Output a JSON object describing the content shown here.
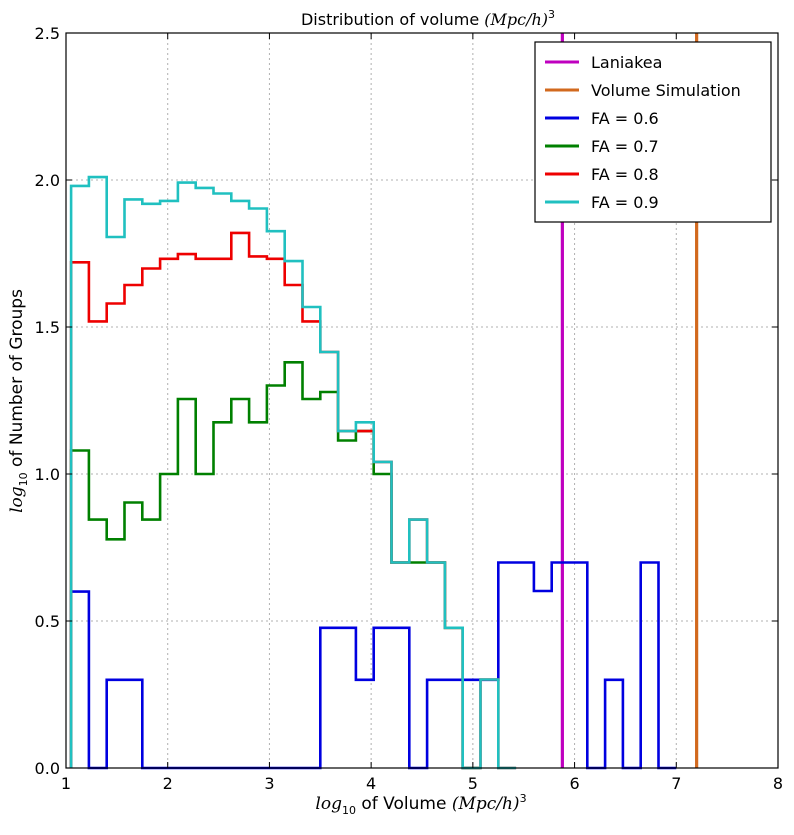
{
  "chart_data": {
    "type": "line",
    "title_prefix": "Distribution of volume ",
    "title_math": "(Mpc/h)",
    "title_sup": "3",
    "xlabel_sub_text": "log",
    "xlabel_sub": "10",
    "xlabel_middle": " of Volume ",
    "xlabel_math": "(Mpc/h)",
    "xlabel_sup": "3",
    "ylabel_sub_text": "log",
    "ylabel_sub": "10",
    "ylabel_rest": " of Number of Groups",
    "xlim": [
      1,
      8
    ],
    "ylim": [
      0,
      2.5
    ],
    "xticks": [
      "1",
      "2",
      "3",
      "4",
      "5",
      "6",
      "7",
      "8"
    ],
    "yticks": [
      "0.0",
      "0.5",
      "1.0",
      "1.5",
      "2.0",
      "2.5"
    ],
    "grid": true,
    "legend_position": "top-right",
    "bin_width": 0.175,
    "vlines": [
      {
        "name": "Laniakea",
        "x": 5.88,
        "color": "#bf00bf"
      },
      {
        "name": "Volume Simulation",
        "x": 7.2,
        "color": "#d2691e"
      }
    ],
    "series": [
      {
        "name": "FA = 0.6",
        "color": "#0000e0",
        "x_start": 1.05,
        "values": [
          0.6,
          0,
          0.3,
          0.3,
          0,
          0,
          0,
          0,
          0,
          0,
          0,
          0,
          0,
          0,
          0.477,
          0.477,
          0.3,
          0.477,
          0.477,
          0,
          0.3,
          0.3,
          0.3,
          0.3,
          0.699,
          0.699,
          0.602,
          0.699,
          0.699,
          0,
          0.3,
          0,
          0.699,
          0
        ]
      },
      {
        "name": "FA = 0.7",
        "color": "#008000",
        "x_start": 1.05,
        "values": [
          1.08,
          0.845,
          0.778,
          0.903,
          0.845,
          1.0,
          1.255,
          1.0,
          1.176,
          1.255,
          1.176,
          1.301,
          1.38,
          1.255,
          1.279,
          1.114,
          1.146,
          1.0,
          0.699,
          0.699,
          0.699,
          0.477,
          0
        ]
      },
      {
        "name": "FA = 0.8",
        "color": "#ee0000",
        "x_start": 1.05,
        "values": [
          1.72,
          1.519,
          1.58,
          1.643,
          1.699,
          1.732,
          1.748,
          1.732,
          1.732,
          1.82,
          1.74,
          1.732,
          1.643,
          1.519,
          1.415,
          1.146,
          1.146,
          1.041,
          0.699,
          0.845,
          0.699,
          0.477,
          0,
          0.301,
          0
        ]
      },
      {
        "name": "FA = 0.9",
        "color": "#20c0c0",
        "x_start": 1.05,
        "values": [
          1.98,
          2.01,
          1.806,
          1.934,
          1.919,
          1.929,
          1.991,
          1.973,
          1.954,
          1.929,
          1.903,
          1.826,
          1.724,
          1.568,
          1.415,
          1.146,
          1.176,
          1.041,
          0.699,
          0.845,
          0.699,
          0.477,
          0,
          0.301,
          0
        ]
      }
    ]
  }
}
